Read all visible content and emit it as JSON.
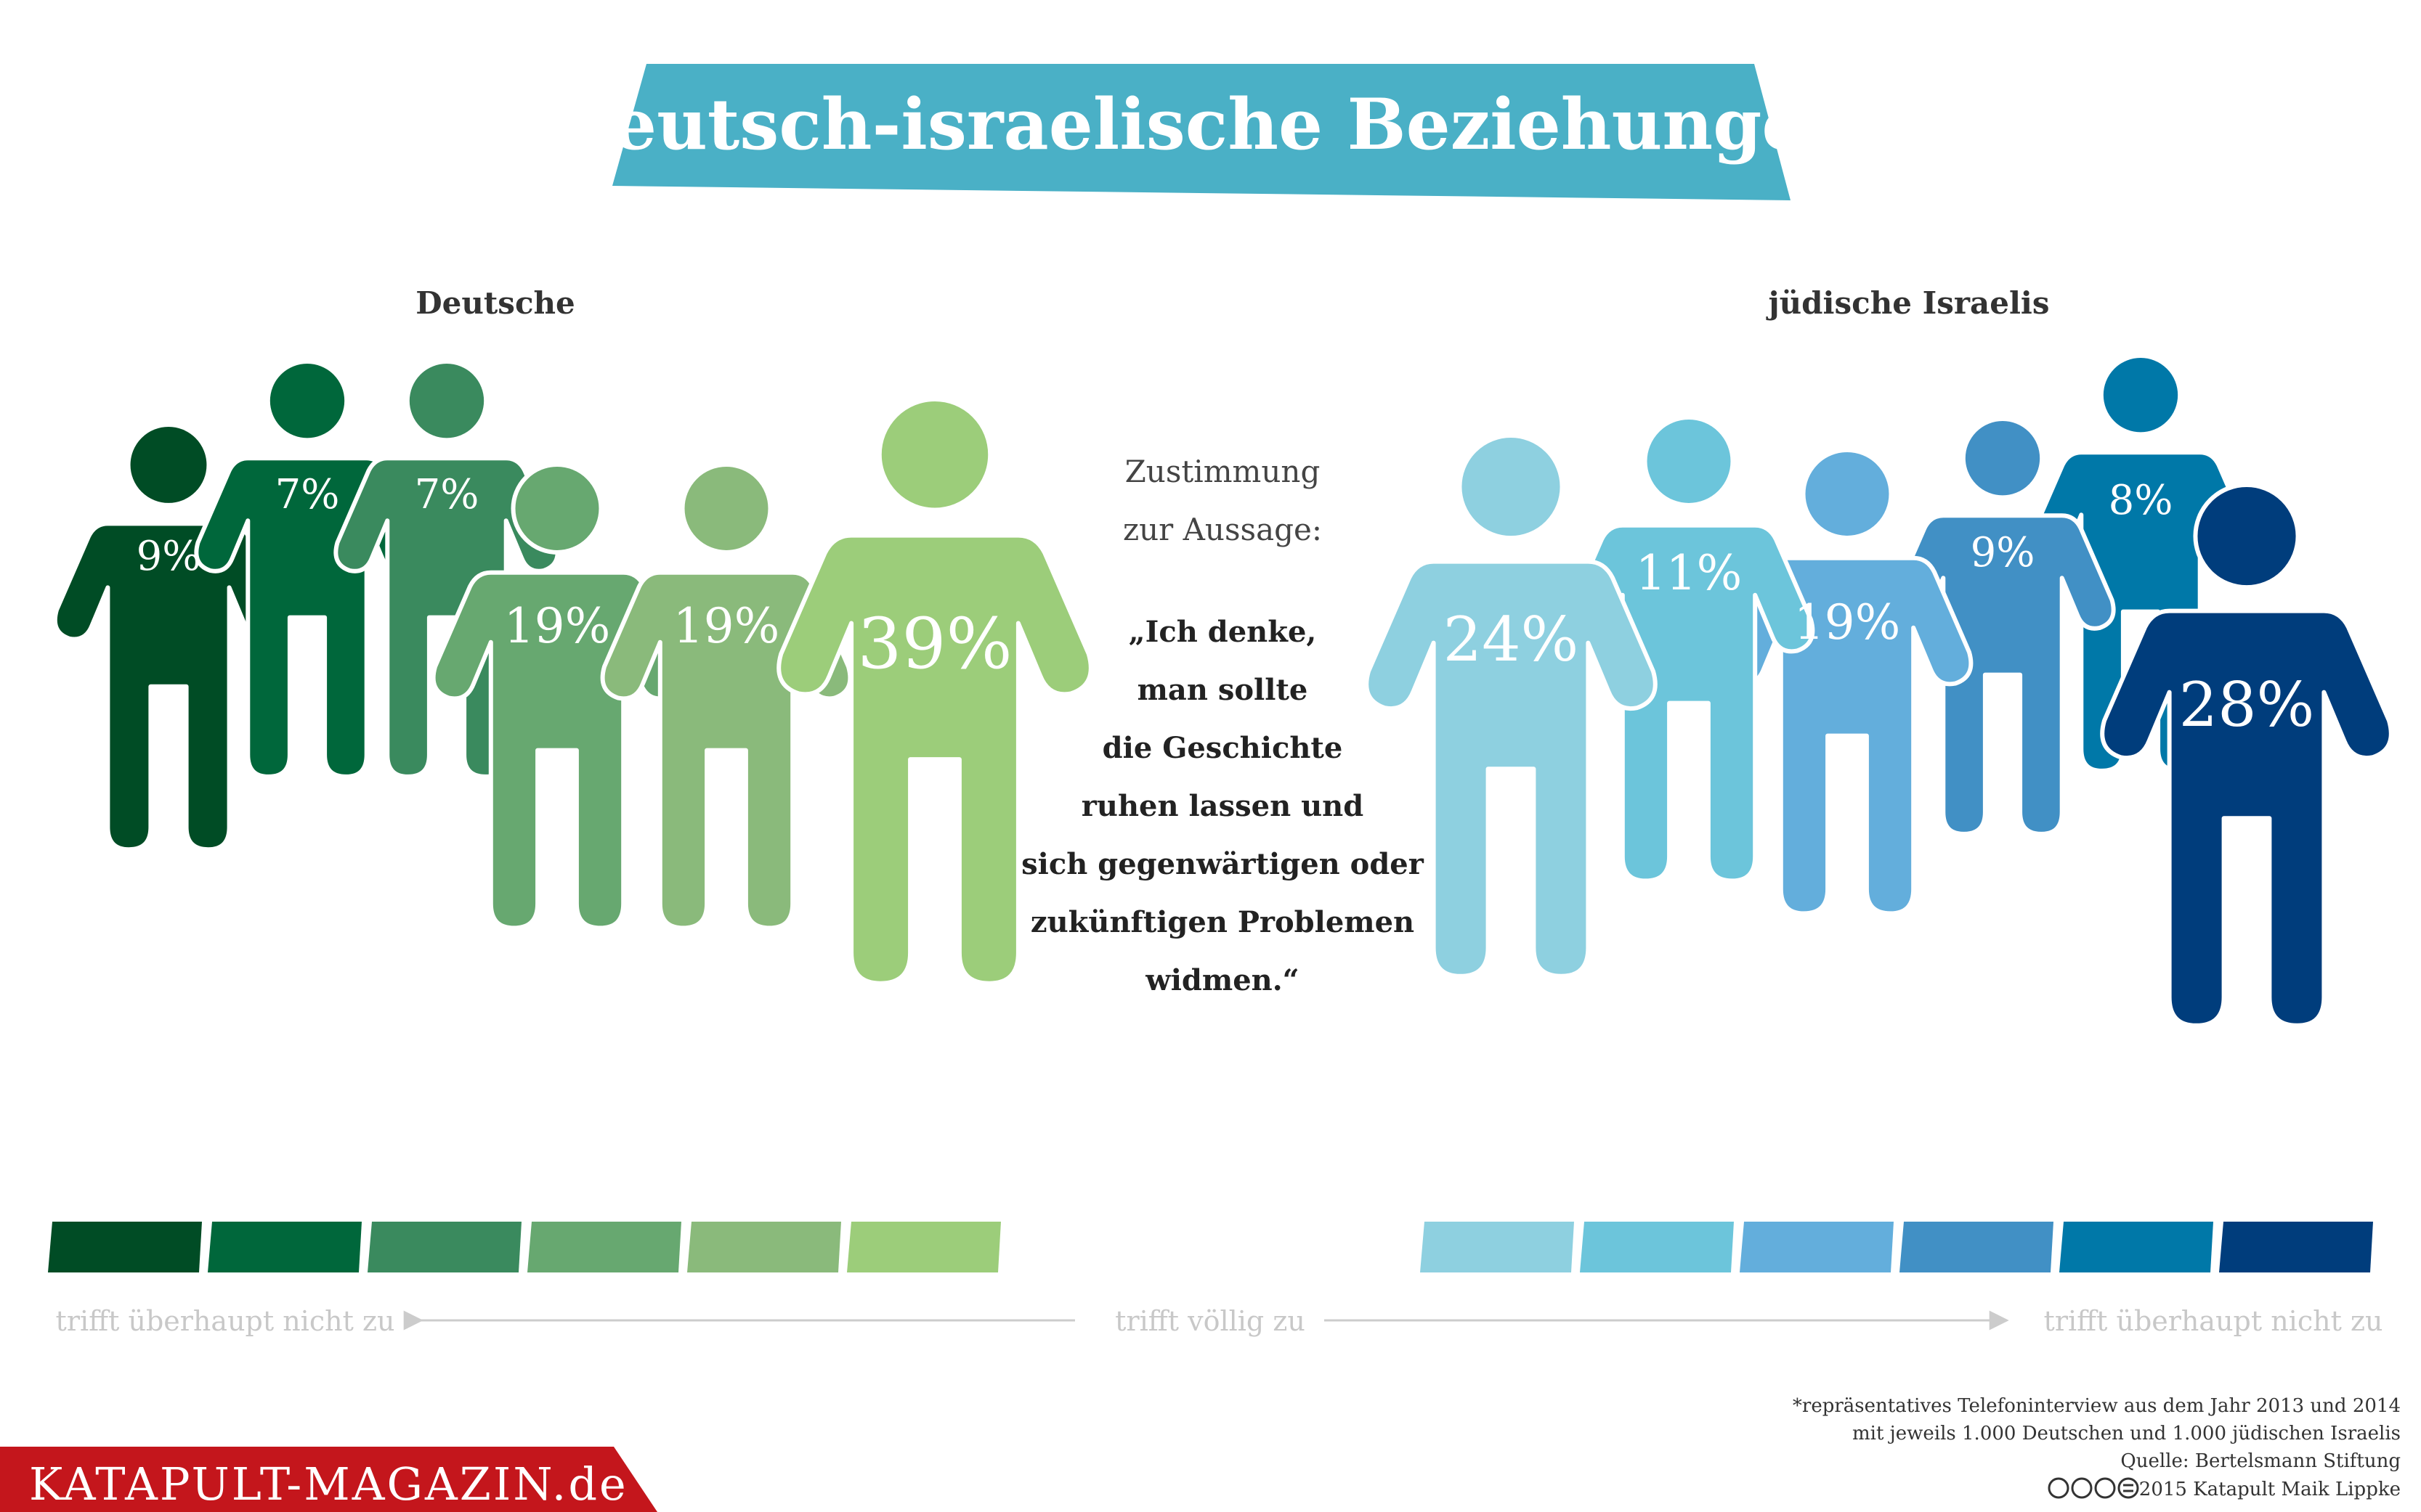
{
  "title": "Deutsch-israelische Beziehungen",
  "chart_data": {
    "type": "pictogram",
    "title": "Deutsch-israelische Beziehungen",
    "question_label_1": "Zustimmung",
    "question_label_2": "zur Aussage:",
    "statement_lines": [
      "„Ich denke,",
      "man sollte",
      "die Geschichte",
      "ruhen lassen und",
      "sich gegenwärtigen oder",
      "zukünftigen Problemen",
      "widmen.“"
    ],
    "scale_categories": [
      "trifft überhaupt nicht zu",
      "2",
      "3",
      "4",
      "5",
      "trifft völlig zu"
    ],
    "series": [
      {
        "name": "Deutsche",
        "values": [
          9,
          7,
          7,
          19,
          19,
          39
        ],
        "labels": [
          "9%",
          "7%",
          "7%",
          "19%",
          "19%",
          "39%"
        ],
        "colors": [
          "#004c25",
          "#00673b",
          "#3a8a5e",
          "#67a870",
          "#8aba7b",
          "#9ccd7a"
        ]
      },
      {
        "name": "jüdische Israelis",
        "values": [
          28,
          8,
          9,
          19,
          11,
          24
        ],
        "labels": [
          "28%",
          "8%",
          "9%",
          "19%",
          "11%",
          "24%"
        ],
        "colors": [
          "#003d7c",
          "#0078a8",
          "#4190c5",
          "#63aedc",
          "#6cc5db",
          "#8ed0e0"
        ]
      }
    ],
    "axis": {
      "left_end": "trifft überhaupt nicht zu",
      "center": "trifft völlig zu",
      "right_end": "trifft überhaupt nicht zu"
    }
  },
  "footnote": {
    "line1": "*repräsentatives Telefoninterview aus dem Jahr 2013 und 2014",
    "line2": "mit jeweils 1.000 Deutschen und 1.000 jüdischen Israelis",
    "source": "Quelle: Bertelsmann Stiftung",
    "credit": "2015 Katapult Maik Lippke",
    "license_icons": "cc-by-nc-nd"
  },
  "brand": {
    "label": "KATAPULT-MAGAZIN.de",
    "color": "#c4161c"
  },
  "colors": {
    "banner": "#4ab0c6",
    "axis_text": "#c8c8c8",
    "label_text": "#333333"
  }
}
